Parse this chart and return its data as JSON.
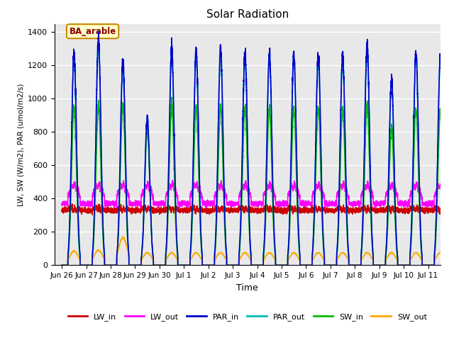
{
  "title": "Solar Radiation",
  "xlabel": "Time",
  "ylabel": "LW, SW (W/m2), PAR (umol/m2/s)",
  "ylim": [
    0,
    1450
  ],
  "background_color": "#e8e8e8",
  "grid_color": "#ffffff",
  "series": {
    "LW_in": {
      "color": "#cc0000",
      "lw": 1.2
    },
    "LW_out": {
      "color": "#ff00ff",
      "lw": 1.2
    },
    "PAR_in": {
      "color": "#0000cc",
      "lw": 1.2
    },
    "PAR_out": {
      "color": "#00bbbb",
      "lw": 1.2
    },
    "SW_in": {
      "color": "#00bb00",
      "lw": 1.2
    },
    "SW_out": {
      "color": "#ffaa00",
      "lw": 1.2
    }
  },
  "tick_labels": [
    "Jun 26",
    "Jun 27",
    "Jun 28",
    "Jun 29",
    "Jun 30",
    "Jul 1",
    "Jul 2",
    "Jul 3",
    "Jul 4",
    "Jul 5",
    "Jul 6",
    "Jul 7",
    "Jul 8",
    "Jul 9",
    "Jul 10",
    "Jul 11"
  ],
  "n_days": 16,
  "samples_per_day": 288,
  "peak_par": [
    1280,
    1360,
    1220,
    880,
    1300,
    1290,
    1300,
    1280,
    1270,
    1265,
    1270,
    1265,
    1320,
    1110,
    1280,
    1265
  ],
  "peak_sw": [
    950,
    960,
    960,
    820,
    960,
    950,
    950,
    950,
    940,
    940,
    950,
    940,
    960,
    820,
    940,
    935
  ],
  "peak_sw_out": [
    85,
    90,
    165,
    75,
    75,
    75,
    75,
    75,
    75,
    75,
    75,
    75,
    75,
    75,
    75,
    75
  ],
  "lw_in_base": 330,
  "lw_out_base": 370
}
